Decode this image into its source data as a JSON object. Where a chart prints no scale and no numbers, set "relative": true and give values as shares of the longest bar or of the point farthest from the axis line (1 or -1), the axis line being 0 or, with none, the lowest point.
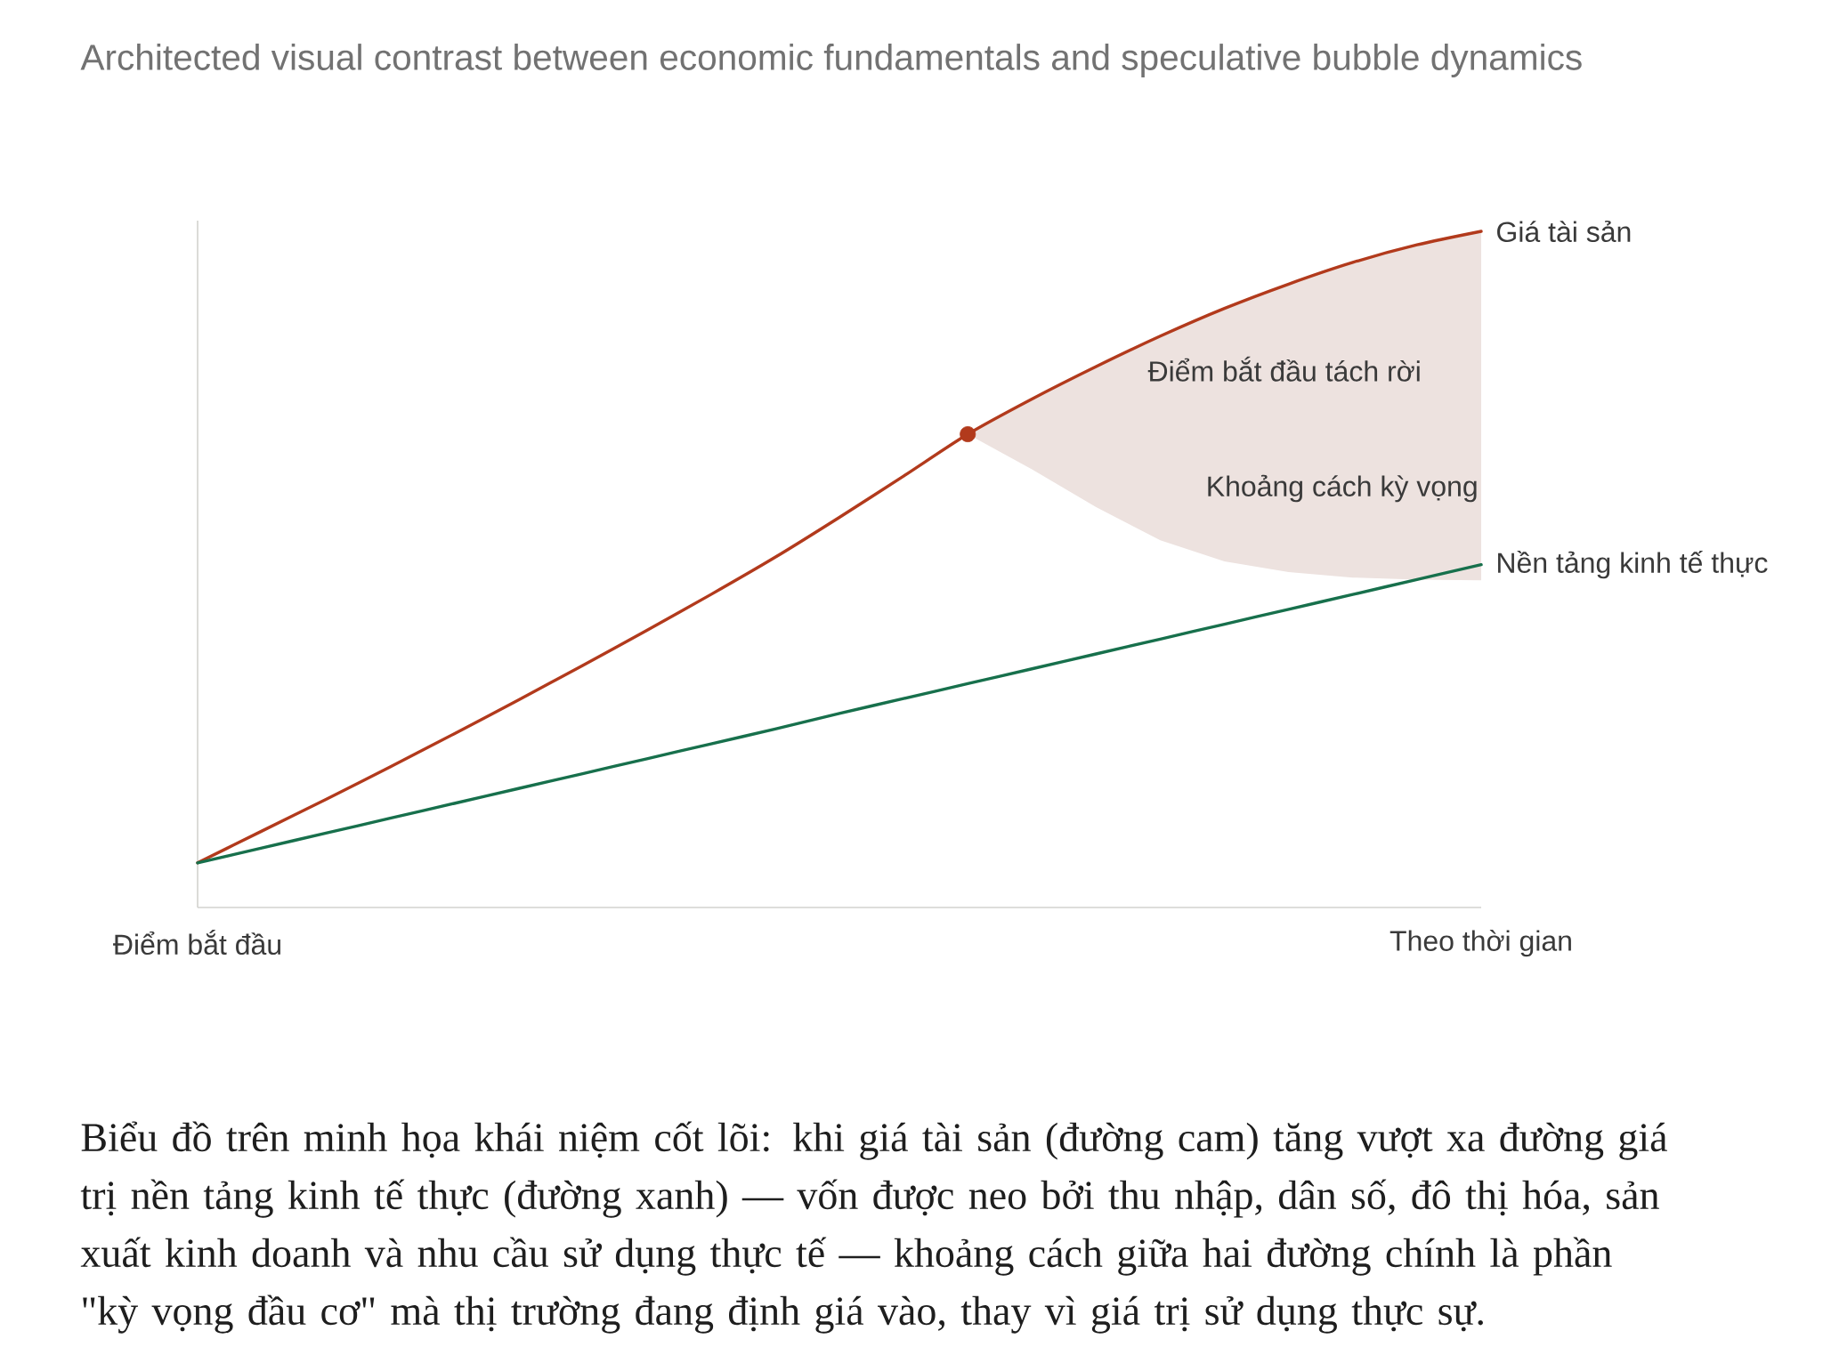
{
  "chart_data": {
    "type": "line",
    "title": "Architected visual contrast between economic fundamentals and speculative bubble dynamics",
    "relative": true,
    "categories": [
      "Điểm bắt đầu",
      null,
      null,
      null,
      null,
      null,
      null,
      null,
      null,
      null,
      null,
      null,
      null,
      null,
      null,
      null,
      null,
      null,
      null,
      null,
      "Theo thời gian"
    ],
    "series": [
      {
        "name": "Giá tài sản",
        "color": "#b23a1c",
        "values": [
          0.066,
          0.113,
          0.16,
          0.208,
          0.257,
          0.307,
          0.358,
          0.41,
          0.463,
          0.518,
          0.577,
          0.638,
          0.7,
          0.752,
          0.8,
          0.845,
          0.886,
          0.922,
          0.954,
          0.98,
          1.0
        ],
        "lower": [
          null,
          null,
          null,
          null,
          null,
          null,
          null,
          null,
          null,
          null,
          null,
          null,
          0.7,
          0.648,
          0.592,
          0.543,
          0.512,
          0.496,
          0.488,
          0.485,
          0.484
        ],
        "upper": [
          null,
          null,
          null,
          null,
          null,
          null,
          null,
          null,
          null,
          null,
          null,
          null,
          0.7,
          0.752,
          0.8,
          0.845,
          0.886,
          0.922,
          0.954,
          0.98,
          1.0
        ]
      },
      {
        "name": "Nền tảng kinh tế thực",
        "color": "#17704c",
        "values": [
          0.066,
          0.088,
          0.11,
          0.132,
          0.154,
          0.176,
          0.198,
          0.22,
          0.242,
          0.264,
          0.287,
          0.309,
          0.331,
          0.353,
          0.375,
          0.397,
          0.419,
          0.441,
          0.463,
          0.485,
          0.507
        ]
      },
      {
        "type": "scatter",
        "color": "#b23a1c",
        "marker": "circle",
        "values": [
          null,
          null,
          null,
          null,
          null,
          null,
          null,
          null,
          null,
          null,
          null,
          null,
          0.7,
          null,
          null,
          null,
          null,
          null,
          null,
          null,
          null
        ]
      }
    ],
    "annotations": [
      "Điểm bắt đầu tách rời",
      "Khoảng cách kỳ vọng",
      "Biểu đồ trên minh họa khái niệm cốt lõi: khi giá tài sản (đường cam) tăng vượt xa đường giá trị nền tảng kinh tế thực (đường xanh) — vốn được neo bởi thu nhập, dân số, đô thị hóa, sản xuất kinh doanh và nhu cầu sử dụng thực tế — khoảng cách giữa hai đường chính là phần \"kỳ vọng đầu cơ\" mà thị trường đang định giá vào, thay vì giá trị sử dụng thực sự."
    ]
  }
}
